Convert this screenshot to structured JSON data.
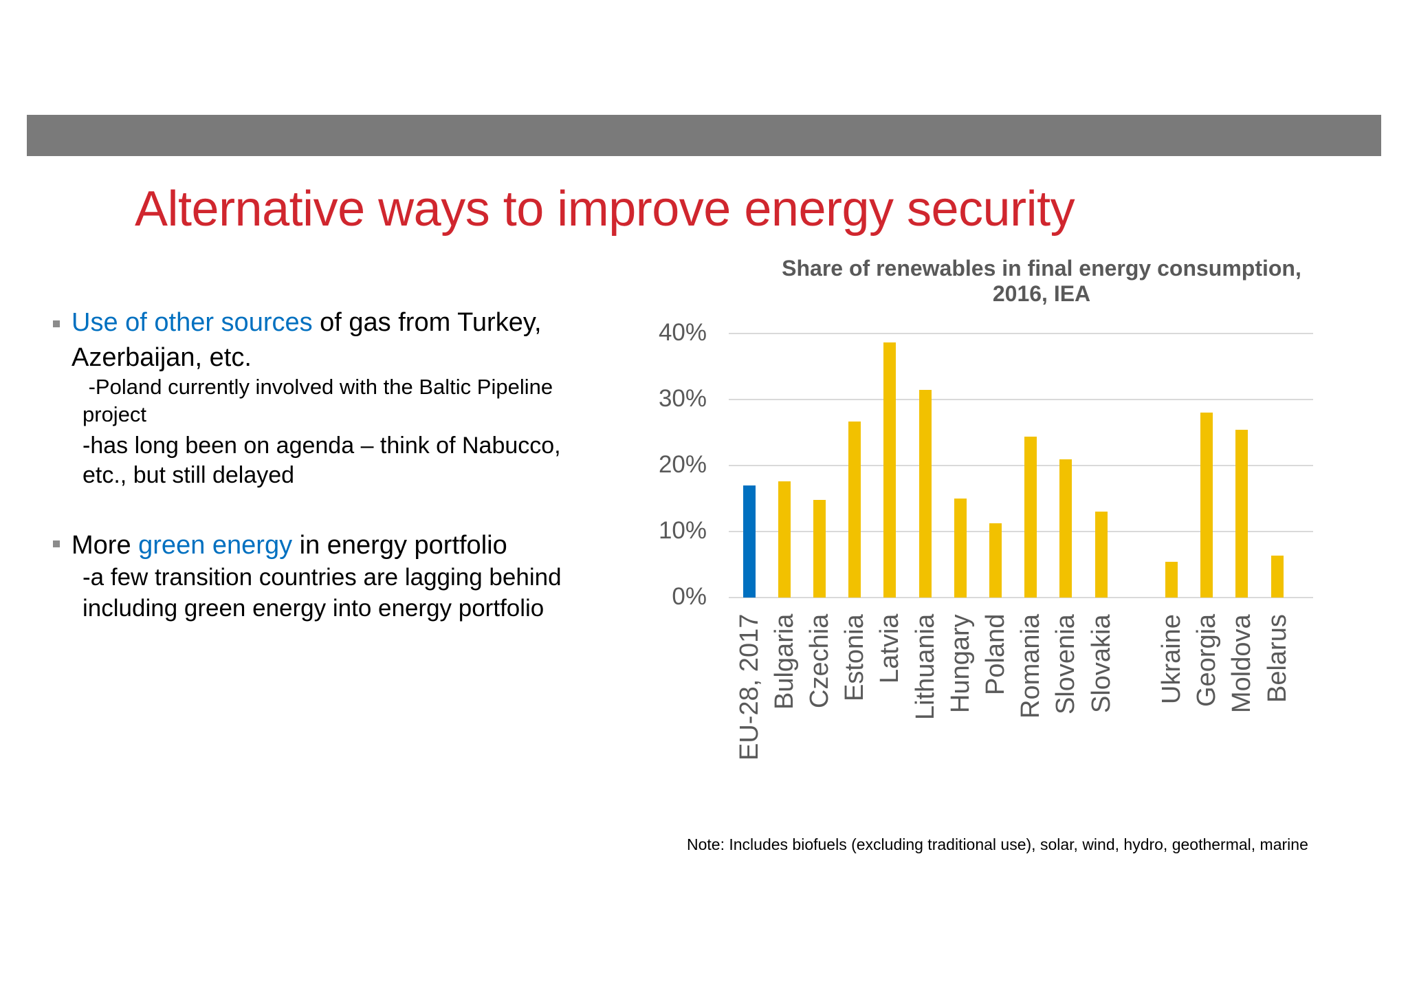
{
  "header": {
    "bar_color": "#7a7a7a"
  },
  "slide": {
    "title": "Alternative ways to improve energy security",
    "title_color": "#d0262e"
  },
  "bullets": [
    {
      "accent_text": "Use of other sources",
      "text_after": " of gas from Turkey,",
      "line2": "Azerbaijan, etc.",
      "subs": [
        {
          "line1": " -Poland currently involved with the Baltic Pipeline",
          "line2": "project"
        },
        {
          "line1": "-has long been on agenda – think of Nabucco,",
          "line2": "etc., but still delayed"
        }
      ]
    },
    {
      "text_before": "More ",
      "accent_text": "green energy",
      "text_after": " in energy portfolio",
      "subs": [
        {
          "line1": "-a few transition countries are lagging behind",
          "line2": "including green energy into energy portfolio"
        }
      ]
    }
  ],
  "accent_color": "#0070c0",
  "chart_data": {
    "type": "bar",
    "title": "Share of renewables in final energy consumption, 2016, IEA",
    "title_lines": [
      "Share of renewables in final energy consumption,",
      "2016, IEA"
    ],
    "xlabel": "",
    "ylabel": "",
    "ylim": [
      0,
      40
    ],
    "yticks": [
      "0%",
      "10%",
      "20%",
      "30%",
      "40%"
    ],
    "grid": true,
    "legend": "none",
    "categories": [
      "EU-28, 2017",
      "Bulgaria",
      "Czechia",
      "Estonia",
      "Latvia",
      "Lithuania",
      "Hungary",
      "Poland",
      "Romania",
      "Slovenia",
      "Slovakia",
      "",
      "Ukraine",
      "Georgia",
      "Moldova",
      "Belarus"
    ],
    "values": [
      17.0,
      17.6,
      14.8,
      26.7,
      38.6,
      31.5,
      15.0,
      11.3,
      24.4,
      20.9,
      13.0,
      null,
      5.4,
      28.0,
      25.4,
      6.4
    ],
    "colors": [
      "#0070c0",
      "#f2c100",
      "#f2c100",
      "#f2c100",
      "#f2c100",
      "#f2c100",
      "#f2c100",
      "#f2c100",
      "#f2c100",
      "#f2c100",
      "#f2c100",
      null,
      "#f2c100",
      "#f2c100",
      "#f2c100",
      "#f2c100"
    ],
    "note": "Note: Includes biofuels (excluding traditional use), solar, wind, hydro, geothermal, marine"
  }
}
